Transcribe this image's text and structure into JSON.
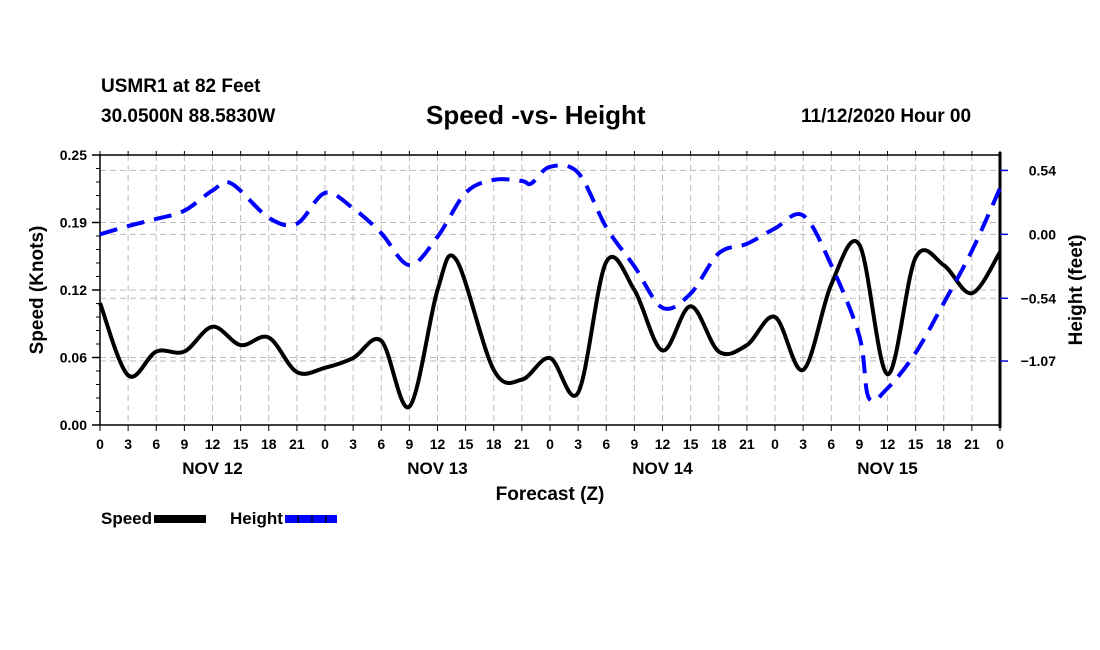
{
  "header": {
    "station": "USMR1 at 82 Feet",
    "coords": "30.0500N 88.5830W",
    "title": "Speed -vs- Height",
    "datetime": "11/12/2020 Hour 00"
  },
  "legend": [
    {
      "label": "Speed",
      "style": "solid",
      "color": "#000000"
    },
    {
      "label": "Height",
      "style": "dashed",
      "color": "#0000ff"
    }
  ],
  "chart_data": {
    "type": "line",
    "title": "Speed -vs- Height",
    "xlabel": "Forecast (Z)",
    "ylabel": "Speed (Knots)",
    "y2label": "Height (feet)",
    "xlim": [
      0,
      96
    ],
    "ylim": [
      0,
      0.25
    ],
    "y2lim": [
      -1.61,
      0.67
    ],
    "grid": true,
    "legend_position": "bottom-left",
    "x_tick_hours": [
      0,
      3,
      6,
      9,
      12,
      15,
      18,
      21,
      24,
      27,
      30,
      33,
      36,
      39,
      42,
      45,
      48,
      51,
      54,
      57,
      60,
      63,
      66,
      69,
      72,
      75,
      78,
      81,
      84,
      87,
      90,
      93,
      96
    ],
    "x_tick_labels": [
      "0",
      "3",
      "6",
      "9",
      "12",
      "15",
      "18",
      "21",
      "0",
      "3",
      "6",
      "9",
      "12",
      "15",
      "18",
      "21",
      "0",
      "3",
      "6",
      "9",
      "12",
      "15",
      "18",
      "21",
      "0",
      "3",
      "6",
      "9",
      "12",
      "15",
      "18",
      "21",
      "0"
    ],
    "day_labels": [
      {
        "label": "NOV 12",
        "hour": 12
      },
      {
        "label": "NOV 13",
        "hour": 36
      },
      {
        "label": "NOV 14",
        "hour": 60
      },
      {
        "label": "NOV 15",
        "hour": 84
      }
    ],
    "y_ticks": [
      0,
      0.0625,
      0.125,
      0.1875,
      0.25
    ],
    "y_tick_labels": [
      "0.00",
      "0.06",
      "0.12",
      "0.19",
      "0.25"
    ],
    "y2_ticks": [
      0.54,
      0.0,
      -0.54,
      -1.07
    ],
    "y2_tick_labels": [
      "0.54",
      "0.00",
      "-0.54",
      "-1.07"
    ],
    "series": [
      {
        "name": "Speed",
        "axis": "left",
        "color": "#000000",
        "x": [
          0,
          3,
          6,
          9,
          12,
          15,
          18,
          21,
          24,
          27,
          30,
          33,
          36,
          38,
          42,
          45,
          48,
          51,
          54,
          57,
          60,
          63,
          66,
          69,
          72,
          75,
          78,
          81,
          84,
          87,
          90,
          93,
          96
        ],
        "values": [
          0.113,
          0.046,
          0.068,
          0.068,
          0.091,
          0.074,
          0.081,
          0.049,
          0.053,
          0.062,
          0.078,
          0.017,
          0.125,
          0.153,
          0.051,
          0.042,
          0.062,
          0.03,
          0.151,
          0.125,
          0.069,
          0.11,
          0.068,
          0.074,
          0.1,
          0.051,
          0.13,
          0.167,
          0.047,
          0.155,
          0.148,
          0.122,
          0.16
        ]
      },
      {
        "name": "Height",
        "axis": "right",
        "color": "#0000ff",
        "x": [
          0,
          3,
          6,
          9,
          12,
          14,
          18,
          21,
          24,
          27,
          30,
          33,
          36,
          39,
          42,
          45,
          46,
          48,
          51,
          54,
          57,
          60,
          63,
          66,
          69,
          72,
          75,
          78,
          81,
          82,
          84,
          87,
          90,
          93,
          96
        ],
        "values": [
          0.0,
          0.07,
          0.13,
          0.2,
          0.37,
          0.43,
          0.14,
          0.09,
          0.35,
          0.22,
          0.01,
          -0.26,
          -0.02,
          0.35,
          0.46,
          0.45,
          0.43,
          0.57,
          0.52,
          0.06,
          -0.27,
          -0.62,
          -0.5,
          -0.16,
          -0.08,
          0.05,
          0.16,
          -0.26,
          -0.86,
          -1.38,
          -1.3,
          -1.0,
          -0.58,
          -0.14,
          0.39
        ]
      }
    ]
  }
}
